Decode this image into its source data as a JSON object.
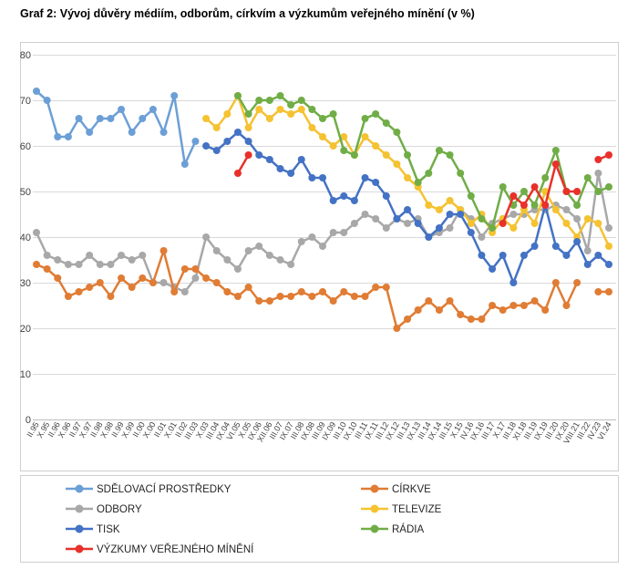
{
  "title": "Graf 2: Vývoj důvěry médiím, odborům, církvím a výzkumům veřejného mínění (v %)",
  "chart_data": {
    "type": "line",
    "grid": true,
    "legend_position": "bottom",
    "y_axis": {
      "min": 0,
      "max": 80,
      "step": 10,
      "tick_labels": [
        "0",
        "10",
        "20",
        "30",
        "40",
        "50",
        "60",
        "70",
        "80"
      ]
    },
    "x_labels": [
      "II.95",
      "X.95",
      "II.96",
      "X.96",
      "II.97",
      "X.97",
      "II.98",
      "X.98",
      "II.99",
      "X.99",
      "II.00",
      "X.00",
      "II.01",
      "X.01",
      "II.02",
      "III.03",
      "X.03",
      "III.04",
      "IX.04",
      "VI.05",
      "X.05",
      "IX.06",
      "XII.06",
      "III.07",
      "IX.07",
      "III.08",
      "IX.08",
      "III.09",
      "IX.09",
      "III.10",
      "IX.10",
      "III.11",
      "IX.11",
      "III.12",
      "IX.12",
      "III.13",
      "IX.13",
      "III.14",
      "IX.14",
      "III.15",
      "X.15",
      "IV.16",
      "IX.16",
      "III.17",
      "X.17",
      "III.18",
      "XI.18",
      "III.19",
      "IX.19",
      "III.20",
      "IX.20",
      "VIII.21",
      "III.22",
      "IV.23",
      "VI.24"
    ],
    "series": [
      {
        "key": "sdelovaci-prostredky",
        "name": "SDĚLOVACÍ PROSTŘEDKY",
        "color": "#6C9FD6",
        "values": [
          72,
          70,
          62,
          62,
          66,
          63,
          66,
          66,
          68,
          63,
          66,
          68,
          63,
          71,
          56,
          61,
          null,
          null,
          null,
          null,
          null,
          null,
          null,
          null,
          null,
          null,
          null,
          null,
          null,
          null,
          null,
          null,
          null,
          null,
          null,
          null,
          null,
          null,
          null,
          null,
          null,
          null,
          null,
          null,
          null,
          null,
          null,
          null,
          null,
          null,
          null,
          null,
          null,
          null,
          null
        ]
      },
      {
        "key": "odbory",
        "name": "ODBORY",
        "color": "#A8A8A8",
        "values": [
          41,
          36,
          35,
          34,
          34,
          36,
          34,
          34,
          36,
          35,
          36,
          30,
          30,
          29,
          28,
          31,
          40,
          37,
          35,
          33,
          37,
          38,
          36,
          35,
          34,
          39,
          40,
          38,
          41,
          41,
          43,
          45,
          44,
          42,
          44,
          43,
          44,
          40,
          41,
          42,
          46,
          44,
          40,
          43,
          44,
          45,
          45,
          46,
          46,
          47,
          46,
          44,
          37,
          54,
          42
        ]
      },
      {
        "key": "tisk",
        "name": "TISK",
        "color": "#4472C4",
        "values": [
          null,
          null,
          null,
          null,
          null,
          null,
          null,
          null,
          null,
          null,
          null,
          null,
          null,
          null,
          null,
          null,
          60,
          59,
          61,
          63,
          61,
          58,
          57,
          55,
          54,
          57,
          53,
          53,
          48,
          49,
          48,
          53,
          52,
          49,
          44,
          46,
          43,
          40,
          42,
          45,
          45,
          41,
          36,
          33,
          36,
          30,
          36,
          38,
          47,
          38,
          36,
          39,
          34,
          36,
          34
        ]
      },
      {
        "key": "vyzkumy-verejneho-mineni",
        "name": "VÝZKUMY VEŘEJNÉHO MÍNĚNÍ",
        "color": "#E8312A",
        "values": [
          null,
          null,
          null,
          null,
          null,
          null,
          null,
          null,
          null,
          null,
          null,
          null,
          null,
          null,
          null,
          null,
          null,
          null,
          null,
          54,
          58,
          null,
          null,
          null,
          null,
          null,
          null,
          null,
          null,
          null,
          null,
          null,
          null,
          null,
          null,
          null,
          null,
          null,
          null,
          null,
          null,
          null,
          null,
          null,
          43,
          49,
          47,
          51,
          47,
          56,
          50,
          50,
          null,
          57,
          58
        ]
      },
      {
        "key": "cirkve",
        "name": "CÍRKVE",
        "color": "#E07C34",
        "values": [
          34,
          33,
          31,
          27,
          28,
          29,
          30,
          27,
          31,
          29,
          31,
          30,
          37,
          28,
          33,
          33,
          31,
          30,
          28,
          27,
          29,
          26,
          26,
          27,
          27,
          28,
          27,
          28,
          26,
          28,
          27,
          27,
          29,
          29,
          20,
          22,
          24,
          26,
          24,
          26,
          23,
          22,
          22,
          25,
          24,
          25,
          25,
          26,
          24,
          30,
          25,
          30,
          null,
          28,
          28
        ]
      },
      {
        "key": "televize",
        "name": "TELEVIZE",
        "color": "#F5C231",
        "values": [
          null,
          null,
          null,
          null,
          null,
          null,
          null,
          null,
          null,
          null,
          null,
          null,
          null,
          null,
          null,
          null,
          66,
          64,
          67,
          71,
          64,
          68,
          66,
          68,
          67,
          68,
          64,
          62,
          60,
          62,
          58,
          62,
          60,
          58,
          56,
          53,
          51,
          47,
          46,
          48,
          46,
          43,
          45,
          41,
          44,
          42,
          46,
          43,
          50,
          46,
          43,
          40,
          44,
          43,
          38
        ]
      },
      {
        "key": "radia",
        "name": "RÁDIA",
        "color": "#70AD47",
        "values": [
          null,
          null,
          null,
          null,
          null,
          null,
          null,
          null,
          null,
          null,
          null,
          null,
          null,
          null,
          null,
          null,
          null,
          null,
          null,
          71,
          67,
          70,
          70,
          71,
          69,
          70,
          68,
          66,
          67,
          59,
          58,
          66,
          67,
          65,
          63,
          58,
          52,
          54,
          59,
          58,
          54,
          49,
          44,
          42,
          51,
          47,
          50,
          47,
          53,
          59,
          50,
          47,
          53,
          50,
          51
        ]
      }
    ],
    "draw_order": [
      1,
      4,
      5,
      6,
      0,
      2,
      3
    ],
    "legend": {
      "left_column": [
        0,
        1,
        2,
        3
      ],
      "right_column": [
        4,
        5,
        6
      ]
    }
  }
}
